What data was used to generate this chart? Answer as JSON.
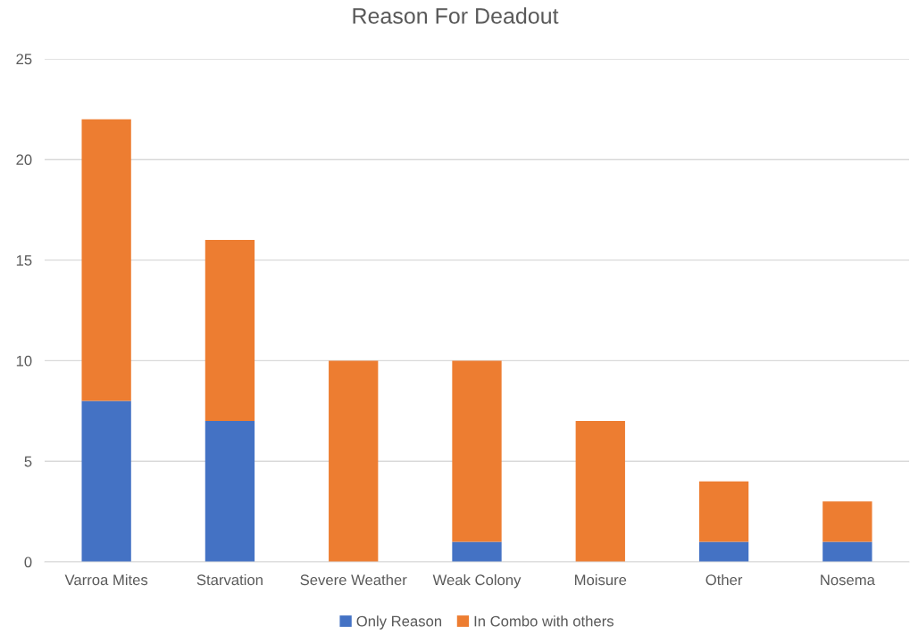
{
  "chart_data": {
    "type": "bar",
    "title": "Reason For Deadout",
    "categories": [
      "Varroa Mites",
      "Starvation",
      "Severe Weather",
      "Weak Colony",
      "Moisure",
      "Other",
      "Nosema"
    ],
    "series": [
      {
        "name": "Only Reason",
        "color": "#4472c4",
        "values": [
          8,
          7,
          0,
          1,
          0,
          1,
          1
        ]
      },
      {
        "name": "In Combo with others",
        "color": "#ed7d31",
        "values": [
          14,
          9,
          10,
          9,
          7,
          3,
          2
        ]
      }
    ],
    "stacked": true,
    "ylim": [
      0,
      25
    ],
    "yticks": [
      0,
      5,
      10,
      15,
      20,
      25
    ],
    "grid": "y",
    "legend": "bottom"
  }
}
